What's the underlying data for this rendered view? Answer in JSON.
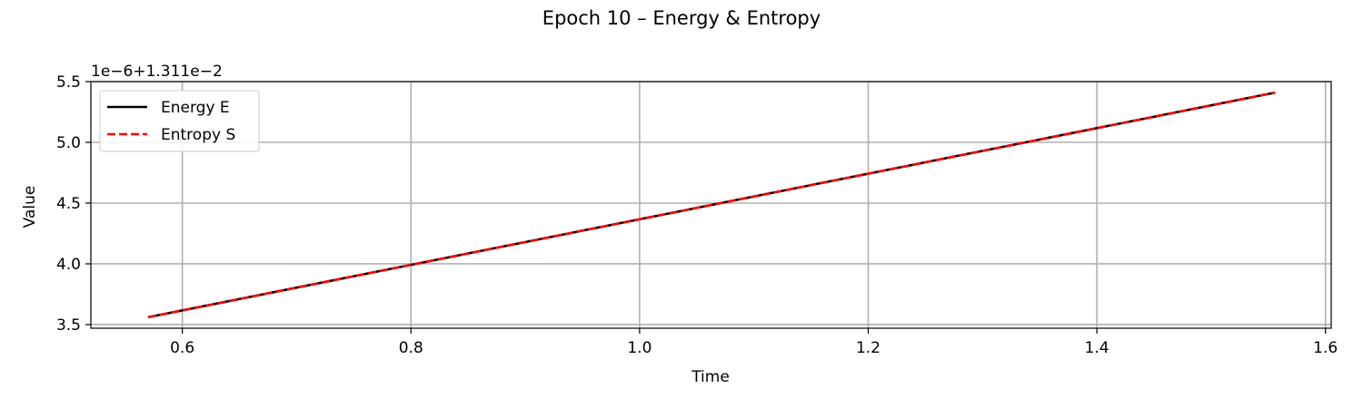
{
  "chart_data": {
    "type": "line",
    "title": "Epoch 10 – Energy & Entropy",
    "xlabel": "Time",
    "ylabel": "Value",
    "offset_text": "1e−6+1.311e−2",
    "xlim": [
      0.52,
      1.605
    ],
    "ylim": [
      3.47,
      5.5
    ],
    "xticks": [
      0.6,
      0.8,
      1.0,
      1.2,
      1.4,
      1.6
    ],
    "xtick_labels": [
      "0.6",
      "0.8",
      "1.0",
      "1.2",
      "1.4",
      "1.6"
    ],
    "yticks": [
      3.5,
      4.0,
      4.5,
      5.0,
      5.5
    ],
    "ytick_labels": [
      "3.5",
      "4.0",
      "4.5",
      "5.0",
      "5.5"
    ],
    "grid": true,
    "legend_position": "top-left",
    "series": [
      {
        "name": "Energy E",
        "color": "#000000",
        "style": "solid",
        "x": [
          0.57,
          1.556
        ],
        "y": [
          3.56,
          5.41
        ]
      },
      {
        "name": "Entropy S",
        "color": "#ff0000",
        "style": "dashed",
        "x": [
          0.57,
          1.556
        ],
        "y": [
          3.56,
          5.41
        ]
      }
    ]
  }
}
